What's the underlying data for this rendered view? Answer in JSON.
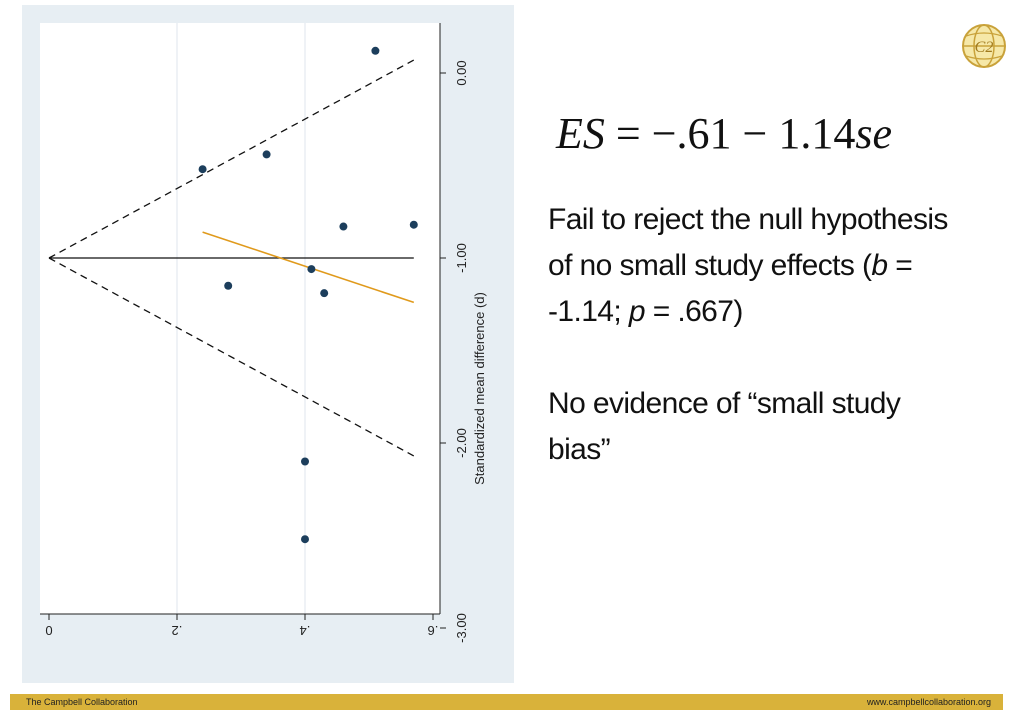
{
  "colors": {
    "panel_bg": "#e7eef3",
    "plot_bg": "#ffffff",
    "point": "#1c3e5c",
    "regression_line": "#e09a1c",
    "footer_bar": "#d9b23a"
  },
  "chart_data": {
    "type": "scatter",
    "orientation": "rotated 90 degrees clockwise",
    "title": "",
    "xlabel": "",
    "ylabel": "Standardized mean difference (d)",
    "xlim": [
      0,
      0.6
    ],
    "ylim": [
      -3.0,
      0.2
    ],
    "x_ticks": [
      "0",
      ".2",
      ".4",
      ".6"
    ],
    "y_ticks": [
      "0.00",
      "-1.00",
      "-2.00",
      "-3.00"
    ],
    "grid": true,
    "points": [
      {
        "x": 0.51,
        "y": 0.12
      },
      {
        "x": 0.24,
        "y": -0.52
      },
      {
        "x": 0.34,
        "y": -0.44
      },
      {
        "x": 0.46,
        "y": -0.83
      },
      {
        "x": 0.57,
        "y": -0.82
      },
      {
        "x": 0.28,
        "y": -1.15
      },
      {
        "x": 0.41,
        "y": -1.06
      },
      {
        "x": 0.43,
        "y": -1.19
      },
      {
        "x": 0.4,
        "y": -2.1
      },
      {
        "x": 0.4,
        "y": -2.52
      }
    ],
    "pooled_estimate": -1.0,
    "pooled_line_xrange": [
      0,
      0.57
    ],
    "funnel": {
      "apex_x": 0,
      "apex_y": -1.0,
      "end_x": 0.57,
      "upper_end_y": 0.07,
      "lower_end_y": -2.07
    },
    "regression_line": {
      "x": [
        0.24,
        0.57
      ],
      "y": [
        -0.86,
        -1.24
      ]
    }
  },
  "text": {
    "formula": {
      "lhs": "ES",
      "eq": " = −.61 − 1.14",
      "var": "se"
    },
    "para1": {
      "line1": "Fail to reject the null hypothesis of no small study effects (",
      "b": "b",
      "mid": " = -1.14;  ",
      "p": "p",
      "end": " = .667)"
    },
    "para2": "No evidence of “small study bias”"
  },
  "footer": {
    "left": "The Campbell Collaboration",
    "right": "www.campbellcollaboration.org"
  },
  "logo": {
    "text": "C2",
    "icon": "globe-icon"
  }
}
